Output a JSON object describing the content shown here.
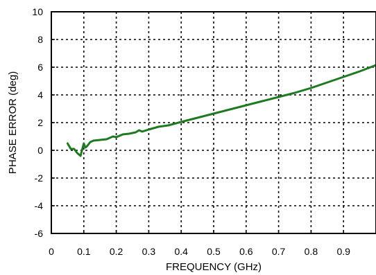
{
  "chart_data": {
    "type": "line",
    "title": "",
    "xlabel": "FREQUENCY (GHz)",
    "ylabel": "PHASE ERROR (deg)",
    "xlim": [
      0,
      1.0
    ],
    "ylim": [
      -6,
      10
    ],
    "x_ticks": [
      0,
      0.1,
      0.2,
      0.3,
      0.4,
      0.5,
      0.6,
      0.7,
      0.8,
      0.9
    ],
    "x_tick_labels": [
      "0",
      "0.1",
      "0.2",
      "0.3",
      "0.4",
      "0.5",
      "0.6",
      "0.7",
      "0.8",
      "0.9"
    ],
    "y_ticks": [
      -6,
      -4,
      -2,
      0,
      2,
      4,
      6,
      8,
      10
    ],
    "y_tick_labels": [
      "-6",
      "-4",
      "-2",
      "0",
      "2",
      "4",
      "6",
      "8",
      "10"
    ],
    "grid": true,
    "grid_style": "dotted",
    "legend": "none",
    "series": [
      {
        "color": "#1e7a1e",
        "x": [
          0.05,
          0.06,
          0.07,
          0.08,
          0.09,
          0.1,
          0.105,
          0.11,
          0.12,
          0.13,
          0.15,
          0.17,
          0.19,
          0.2,
          0.22,
          0.24,
          0.26,
          0.27,
          0.28,
          0.3,
          0.33,
          0.36,
          0.4,
          0.45,
          0.5,
          0.55,
          0.6,
          0.65,
          0.7,
          0.75,
          0.8,
          0.85,
          0.9,
          0.95,
          1.0
        ],
        "y": [
          0.5,
          0.1,
          0.1,
          -0.2,
          -0.4,
          0.5,
          0.2,
          0.3,
          0.6,
          0.7,
          0.75,
          0.8,
          1.0,
          0.95,
          1.15,
          1.2,
          1.3,
          1.45,
          1.35,
          1.5,
          1.7,
          1.8,
          2.05,
          2.35,
          2.65,
          2.95,
          3.25,
          3.55,
          3.85,
          4.15,
          4.5,
          4.9,
          5.3,
          5.7,
          6.15
        ]
      }
    ]
  }
}
